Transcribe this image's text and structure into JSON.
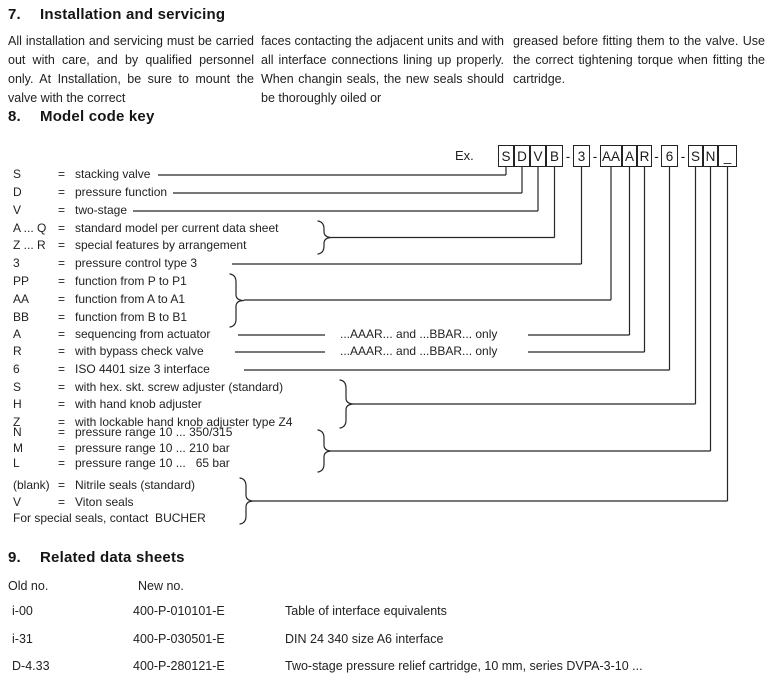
{
  "section7": {
    "number": "7.",
    "title": "Installation and servicing",
    "columns": [
      "All installation and servicing  must be carried out with care, and by qualified personnel only. At Installation, be sure to mount the valve with the correct",
      "faces contacting the adjacent units and with all interface connections lining up properly. When changin seals, the new seals should be thoroughly oiled or",
      "greased before fitting them to the valve. Use the correct tightening torque when fitting the cartridge."
    ]
  },
  "section8": {
    "number": "8.",
    "title": "Model code key",
    "example_label": "Ex.",
    "code_segments": [
      {
        "type": "box",
        "text": "S"
      },
      {
        "type": "box",
        "text": "D"
      },
      {
        "type": "box",
        "text": "V"
      },
      {
        "type": "box",
        "text": "B"
      },
      {
        "type": "dash",
        "text": "-"
      },
      {
        "type": "box",
        "text": "3"
      },
      {
        "type": "dash",
        "text": "-"
      },
      {
        "type": "box",
        "text": "AA"
      },
      {
        "type": "box",
        "text": "A"
      },
      {
        "type": "box",
        "text": "R"
      },
      {
        "type": "dash",
        "text": "-"
      },
      {
        "type": "box",
        "text": "6"
      },
      {
        "type": "dash",
        "text": "-"
      },
      {
        "type": "box",
        "text": "S"
      },
      {
        "type": "box",
        "text": "N"
      },
      {
        "type": "box",
        "text": "_"
      }
    ],
    "rows": [
      {
        "code": "S",
        "eq": "=",
        "desc": "stacking valve"
      },
      {
        "code": "D",
        "eq": "=",
        "desc": "pressure function"
      },
      {
        "code": "V",
        "eq": "=",
        "desc": "two-stage"
      },
      {
        "code": "A ... Q",
        "eq": "=",
        "desc": "standard model per current data sheet"
      },
      {
        "code": "Z ... R",
        "eq": "=",
        "desc": "special features by arrangement"
      },
      {
        "code": "3",
        "eq": "=",
        "desc": "pressure control type 3"
      },
      {
        "code": "PP",
        "eq": "=",
        "desc": "function from P to P1"
      },
      {
        "code": "AA",
        "eq": "=",
        "desc": "function from A to A1"
      },
      {
        "code": "BB",
        "eq": "=",
        "desc": "function from B to B1"
      },
      {
        "code": "A",
        "eq": "=",
        "desc": "sequencing from actuator",
        "note": "...AAAR... and ...BBAR... only"
      },
      {
        "code": "R",
        "eq": "=",
        "desc": "with bypass check valve",
        "note": "...AAAR... and ...BBAR... only"
      },
      {
        "code": "6",
        "eq": "=",
        "desc": "ISO 4401 size 3 interface"
      },
      {
        "code": "S",
        "eq": "=",
        "desc": "with hex. skt. screw adjuster (standard)"
      },
      {
        "code": "H",
        "eq": "=",
        "desc": "with hand knob adjuster"
      },
      {
        "code": "Z",
        "eq": "=",
        "desc": "with lockable hand knob adjuster type Z4"
      },
      {
        "code": "N",
        "eq": "=",
        "desc": "pressure range 10 ... 350/315"
      },
      {
        "code": "M",
        "eq": "=",
        "desc": "pressure range 10 ... 210 bar"
      },
      {
        "code": "L",
        "eq": "=",
        "desc": "pressure range 10 ...   65 bar"
      },
      {
        "code": "(blank)",
        "eq": "=",
        "desc": "Nitrile seals (standard)"
      },
      {
        "code": "V",
        "eq": "=",
        "desc": "Viton seals"
      },
      {
        "code": "For special seals, contact  BUCHER",
        "eq": "",
        "desc": ""
      }
    ]
  },
  "section9": {
    "number": "9.",
    "title": "Related data sheets",
    "col_headers": [
      "Old no.",
      "New no."
    ],
    "rows": [
      {
        "old": "i-00",
        "new": "400-P-010101-E",
        "desc": "Table of interface equivalents"
      },
      {
        "old": "i-31",
        "new": "400-P-030501-E",
        "desc": "DIN 24 340 size A6 interface"
      },
      {
        "old": "D-4.33",
        "new": "400-P-280121-E",
        "desc": "Two-stage pressure relief cartridge, 10 mm, series DVPA-3-10 ..."
      }
    ]
  },
  "colors": {
    "text": "#1b1b1b",
    "line": "#262626",
    "background": "#ffffff"
  }
}
